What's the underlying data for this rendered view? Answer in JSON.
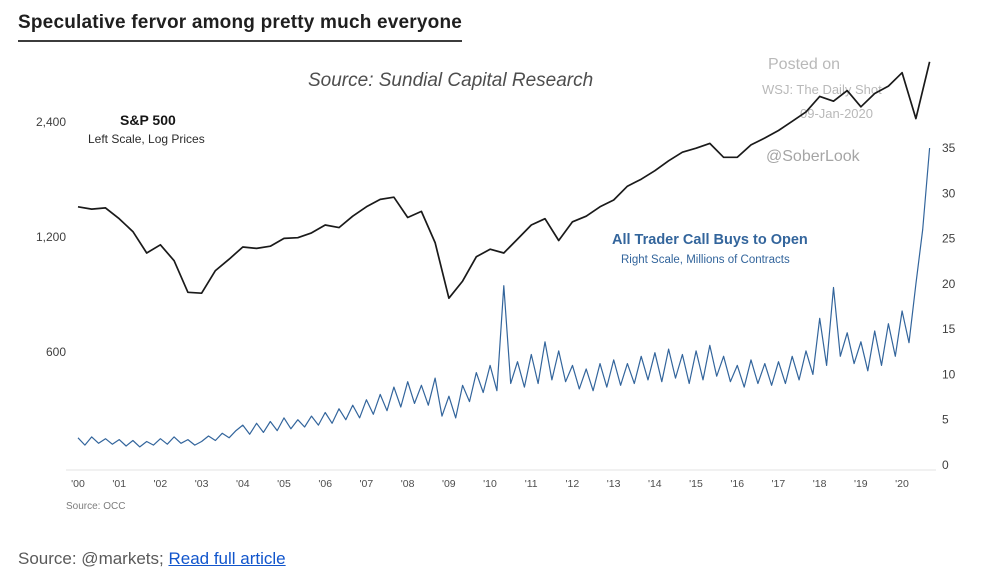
{
  "chart": {
    "title": "Speculative fervor among pretty much everyone",
    "source_line": "Source: Sundial Capital Research",
    "watermark": {
      "line1": "Posted on",
      "line2": "WSJ: The Daily Shot",
      "line3": "09-Jan-2020",
      "handle": "@SoberLook"
    },
    "series1_label": "S&P 500",
    "series1_sublabel": "Left Scale, Log Prices",
    "series2_label": "All Trader Call Buys to Open",
    "series2_sublabel": "Right Scale, Millions of Contracts",
    "bottom_source": "Source: OCC",
    "colors": {
      "sp500": "#1a1a1a",
      "calls": "#33659c"
    }
  },
  "footer": {
    "source_text": "Source: @markets; ",
    "link_text": "Read full article"
  },
  "chart_data": {
    "type": "line",
    "title": "Speculative fervor among pretty much everyone",
    "x_ticks": [
      "'00",
      "'01",
      "'02",
      "'03",
      "'04",
      "'05",
      "'06",
      "'07",
      "'08",
      "'09",
      "'10",
      "'11",
      "'12",
      "'13",
      "'14",
      "'15",
      "'16",
      "'17",
      "'18",
      "'19",
      "'20"
    ],
    "left_axis": {
      "scale": "log",
      "label": "S&P 500, Log Prices",
      "ticks": [
        {
          "label": "2,400",
          "value": 2400
        },
        {
          "label": "1,200",
          "value": 1200
        },
        {
          "label": "600",
          "value": 600
        }
      ]
    },
    "right_axis": {
      "scale": "linear",
      "label": "Millions of Contracts",
      "ticks": [
        0,
        5,
        10,
        15,
        20,
        25,
        30,
        35
      ],
      "range": [
        0,
        35
      ]
    },
    "series": [
      {
        "name": "S&P 500",
        "axis": "left",
        "color": "#1a1a1a",
        "width": 1.7,
        "x_start": 2000.0,
        "x_end": 2020.67,
        "values": [
          1440,
          1420,
          1430,
          1340,
          1240,
          1090,
          1145,
          1040,
          860,
          855,
          980,
          1050,
          1130,
          1120,
          1135,
          1190,
          1195,
          1230,
          1290,
          1270,
          1360,
          1440,
          1505,
          1525,
          1350,
          1400,
          1160,
          830,
          920,
          1065,
          1115,
          1090,
          1185,
          1290,
          1340,
          1175,
          1315,
          1360,
          1440,
          1500,
          1630,
          1700,
          1790,
          1900,
          2000,
          2050,
          2110,
          1940,
          1940,
          2090,
          2180,
          2280,
          2410,
          2550,
          2800,
          2720,
          2900,
          2630,
          2850,
          2980,
          3230,
          2450,
          3450
        ]
      },
      {
        "name": "All Trader Call Buys to Open",
        "axis": "right",
        "color": "#33659c",
        "width": 1.2,
        "x_start": 2000.0,
        "x_end": 2020.67,
        "values": [
          3.0,
          2.2,
          3.1,
          2.4,
          2.9,
          2.3,
          2.8,
          2.1,
          2.7,
          2.0,
          2.6,
          2.2,
          2.9,
          2.3,
          3.1,
          2.4,
          2.8,
          2.2,
          2.6,
          3.2,
          2.7,
          3.5,
          3.0,
          3.8,
          4.4,
          3.4,
          4.6,
          3.6,
          4.8,
          3.8,
          5.2,
          4.0,
          5.0,
          4.2,
          5.4,
          4.4,
          5.8,
          4.6,
          6.2,
          5.0,
          6.6,
          5.2,
          7.2,
          5.6,
          7.8,
          6.0,
          8.6,
          6.4,
          9.2,
          6.8,
          8.8,
          6.6,
          9.6,
          5.4,
          7.6,
          5.2,
          8.8,
          7.0,
          10.2,
          8.0,
          11.0,
          8.2,
          19.8,
          9.0,
          11.4,
          8.6,
          12.2,
          9.0,
          13.6,
          9.4,
          12.6,
          9.2,
          11.0,
          8.4,
          10.6,
          8.2,
          11.2,
          8.6,
          11.6,
          8.8,
          11.2,
          9.0,
          12.0,
          9.4,
          12.4,
          9.2,
          12.8,
          9.6,
          12.2,
          9.0,
          12.6,
          9.4,
          13.2,
          9.8,
          12.0,
          9.2,
          11.0,
          8.6,
          11.6,
          9.0,
          11.2,
          8.8,
          11.4,
          9.0,
          12.0,
          9.4,
          12.6,
          10.0,
          16.2,
          11.0,
          19.6,
          12.0,
          14.6,
          11.2,
          13.6,
          10.4,
          14.8,
          11.0,
          15.6,
          12.0,
          17.0,
          13.5,
          20.0,
          26.0,
          35.0
        ]
      }
    ]
  }
}
